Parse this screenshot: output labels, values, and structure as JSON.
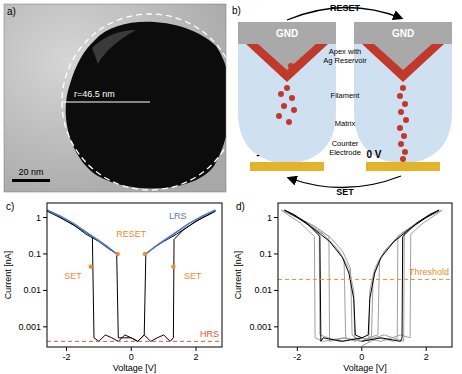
{
  "image_panel": {
    "label": "a)",
    "radius_label": "r=46.5 nm",
    "scale_bar": "20 nm"
  },
  "schematic": {
    "label": "b)",
    "top_arrow": "RESET",
    "bottom_arrow": "SET",
    "ground": "GND",
    "apex": [
      "Apex with",
      "Ag Reservoir"
    ],
    "filament": "Filament",
    "matrix": "Matrix",
    "counter_electrode": [
      "Counter",
      "Electrode"
    ],
    "left_voltage": "-",
    "right_voltage": "0 V"
  },
  "chart_data": [
    {
      "type": "line",
      "title": "c)",
      "x_label": "Voltage [V]",
      "y_label": "Current [nA]",
      "log": "y",
      "grid": false,
      "xlim": [
        -2.6,
        2.8
      ],
      "ylim": [
        0.00028,
        2.5
      ],
      "xticks": [
        -2,
        0,
        2
      ],
      "yticks": [
        0.001,
        0.01,
        0.1,
        1
      ],
      "series": [
        {
          "color": "#000000",
          "line_style": "solid",
          "x": [
            0,
            0.2,
            0.4,
            0.6,
            0.8,
            1.0,
            1.2,
            1.3,
            1.32,
            1.6,
            2.0,
            2.4,
            2.6,
            2.2,
            1.8,
            1.4,
            1.0,
            0.7,
            0.45,
            0.4,
            0.2,
            0,
            -0.2,
            -0.4,
            -0.6,
            -0.8,
            -1.0,
            -1.15,
            -1.2,
            -1.6,
            -2.0,
            -2.4,
            -2.6,
            -2.2,
            -1.8,
            -1.4,
            -1.0,
            -0.7,
            -0.45,
            -0.4,
            -0.2,
            0
          ],
          "values": [
            0.0005,
            0.0004,
            0.0006,
            0.0004,
            0.0005,
            0.0006,
            0.0004,
            0.0005,
            0.25,
            0.45,
            0.8,
            1.2,
            1.5,
            1.0,
            0.6,
            0.35,
            0.22,
            0.15,
            0.1,
            0.0006,
            0.0004,
            0.0005,
            0.0006,
            0.0004,
            0.0005,
            0.0006,
            0.0004,
            0.0005,
            0.3,
            0.5,
            0.8,
            1.3,
            1.5,
            1.0,
            0.65,
            0.35,
            0.22,
            0.14,
            0.1,
            0.0005,
            0.0005,
            0.0005
          ]
        },
        {
          "name": "LRS",
          "color": "#5577bb",
          "line_style": "solid",
          "x": [
            -2.6,
            -2.2,
            -1.8,
            -1.4,
            -1.0,
            -0.7,
            -0.45,
            0,
            0.45,
            0.7,
            1.0,
            1.4,
            1.8,
            2.2,
            2.6
          ],
          "values": [
            1.6,
            1.1,
            0.7,
            0.4,
            0.23,
            0.15,
            0.1,
            null,
            0.1,
            0.15,
            0.23,
            0.4,
            0.7,
            1.1,
            1.6
          ]
        },
        {
          "name": "HRS",
          "color": "#e8542b",
          "line_style": "dashed",
          "x": [
            -2.6,
            2.8
          ],
          "values": [
            0.0004,
            0.0004
          ]
        }
      ],
      "annotations": [
        {
          "text": "RESET",
          "color": "#f08a35",
          "x": 0,
          "y": 0.3,
          "targets": [
            [
              -0.42,
              0.1
            ],
            [
              0.42,
              0.1
            ]
          ]
        },
        {
          "text": "SET",
          "color": "#f08a35",
          "x": -1.8,
          "y": 0.02,
          "targets": [
            [
              -1.25,
              0.045
            ]
          ]
        },
        {
          "text": "SET",
          "color": "#f08a35",
          "x": 1.9,
          "y": 0.02,
          "targets": [
            [
              1.3,
              0.045
            ]
          ]
        }
      ]
    },
    {
      "type": "line",
      "title": "d)",
      "x_label": "Voltage [V]",
      "y_label": "Current [nA]",
      "log": "y",
      "grid": false,
      "xlim": [
        -2.6,
        2.8
      ],
      "ylim": [
        0.00028,
        2.5
      ],
      "xticks": [
        -2,
        0,
        2
      ],
      "yticks": [
        0.001,
        0.01,
        0.1,
        1
      ],
      "series": [
        {
          "color": "#a0a0a0",
          "line_style": "solid",
          "x": [
            0,
            0.5,
            1.0,
            1.1,
            1.12,
            1.6,
            2.0,
            2.4,
            2.0,
            1.6,
            1.2,
            0.8,
            0.5,
            0.35,
            0.3,
            0,
            -0.5,
            -1.0,
            -1.02,
            -1.5,
            -2.0,
            -2.4,
            -2.0,
            -1.5,
            -1.0,
            -0.6,
            -0.35,
            -0.3,
            0
          ],
          "values": [
            0.0003,
            0.0005,
            0.0004,
            0.0005,
            0.3,
            0.6,
            1.0,
            1.5,
            1.0,
            0.6,
            0.3,
            0.15,
            0.06,
            0.02,
            0.0005,
            0.0004,
            0.0005,
            0.0004,
            0.3,
            0.6,
            1.0,
            1.5,
            1.0,
            0.6,
            0.3,
            0.12,
            0.04,
            0.0006,
            0.0004
          ]
        },
        {
          "color": "#a0a0a0",
          "line_style": "solid",
          "x": [
            0,
            0.6,
            1.2,
            1.5,
            1.52,
            1.9,
            2.3,
            2.5,
            2.1,
            1.7,
            1.2,
            0.8,
            0.55,
            0.5,
            0.2,
            0,
            -0.6,
            -1.2,
            -1.45,
            -1.47,
            -1.9,
            -2.3,
            -2.5,
            -2.1,
            -1.7,
            -1.2,
            -0.8,
            -0.55,
            -0.5,
            -0.2,
            0
          ],
          "values": [
            0.0005,
            0.0004,
            0.0006,
            0.0005,
            0.35,
            0.7,
            1.2,
            1.6,
            1.1,
            0.7,
            0.35,
            0.15,
            0.07,
            0.0006,
            0.0005,
            0.0004,
            0.0005,
            0.0004,
            0.0005,
            0.3,
            0.7,
            1.2,
            1.6,
            1.1,
            0.7,
            0.35,
            0.15,
            0.07,
            0.0005,
            0.0004,
            0.0005
          ]
        },
        {
          "color": "#a0a0a0",
          "line_style": "solid",
          "x": [
            0,
            0.7,
            1.3,
            1.32,
            1.8,
            2.2,
            2.4,
            1.8,
            1.2,
            0.7,
            0.4,
            0.25,
            0.22,
            0,
            -0.7,
            -1.3,
            -1.32,
            -1.8,
            -2.2,
            -2.4,
            -1.8,
            -1.2,
            -0.7,
            -0.4,
            -0.25,
            -0.22,
            0
          ],
          "values": [
            0.0004,
            0.0006,
            0.0004,
            0.4,
            0.8,
            1.3,
            1.5,
            0.8,
            0.35,
            0.12,
            0.04,
            0.01,
            0.0004,
            0.0005,
            0.0004,
            0.0006,
            0.35,
            0.8,
            1.3,
            1.5,
            0.8,
            0.35,
            0.12,
            0.04,
            0.01,
            0.0005,
            0.0004
          ]
        },
        {
          "color": "#000000",
          "line_style": "solid",
          "x": [
            0,
            0.6,
            1.2,
            1.25,
            1.27,
            1.7,
            2.1,
            2.4,
            2.0,
            1.5,
            1.0,
            0.6,
            0.4,
            0.25,
            0.2,
            0,
            -0.6,
            -1.2,
            -1.27,
            -1.3,
            -1.7,
            -2.1,
            -2.4,
            -2.0,
            -1.5,
            -1.0,
            -0.6,
            -0.4,
            -0.25,
            -0.2,
            0
          ],
          "values": [
            0.0004,
            0.0005,
            0.0004,
            0.0005,
            0.3,
            0.7,
            1.2,
            1.6,
            1.0,
            0.5,
            0.22,
            0.08,
            0.03,
            0.006,
            0.0006,
            0.0005,
            0.0004,
            0.0005,
            0.0004,
            0.3,
            0.7,
            1.2,
            1.6,
            1.0,
            0.5,
            0.22,
            0.08,
            0.03,
            0.006,
            0.0006,
            0.0005
          ]
        },
        {
          "name": "Threshold",
          "color": "#f08a35",
          "line_style": "dashed",
          "x": [
            -2.6,
            2.8
          ],
          "values": [
            0.02,
            0.02
          ]
        }
      ]
    }
  ]
}
